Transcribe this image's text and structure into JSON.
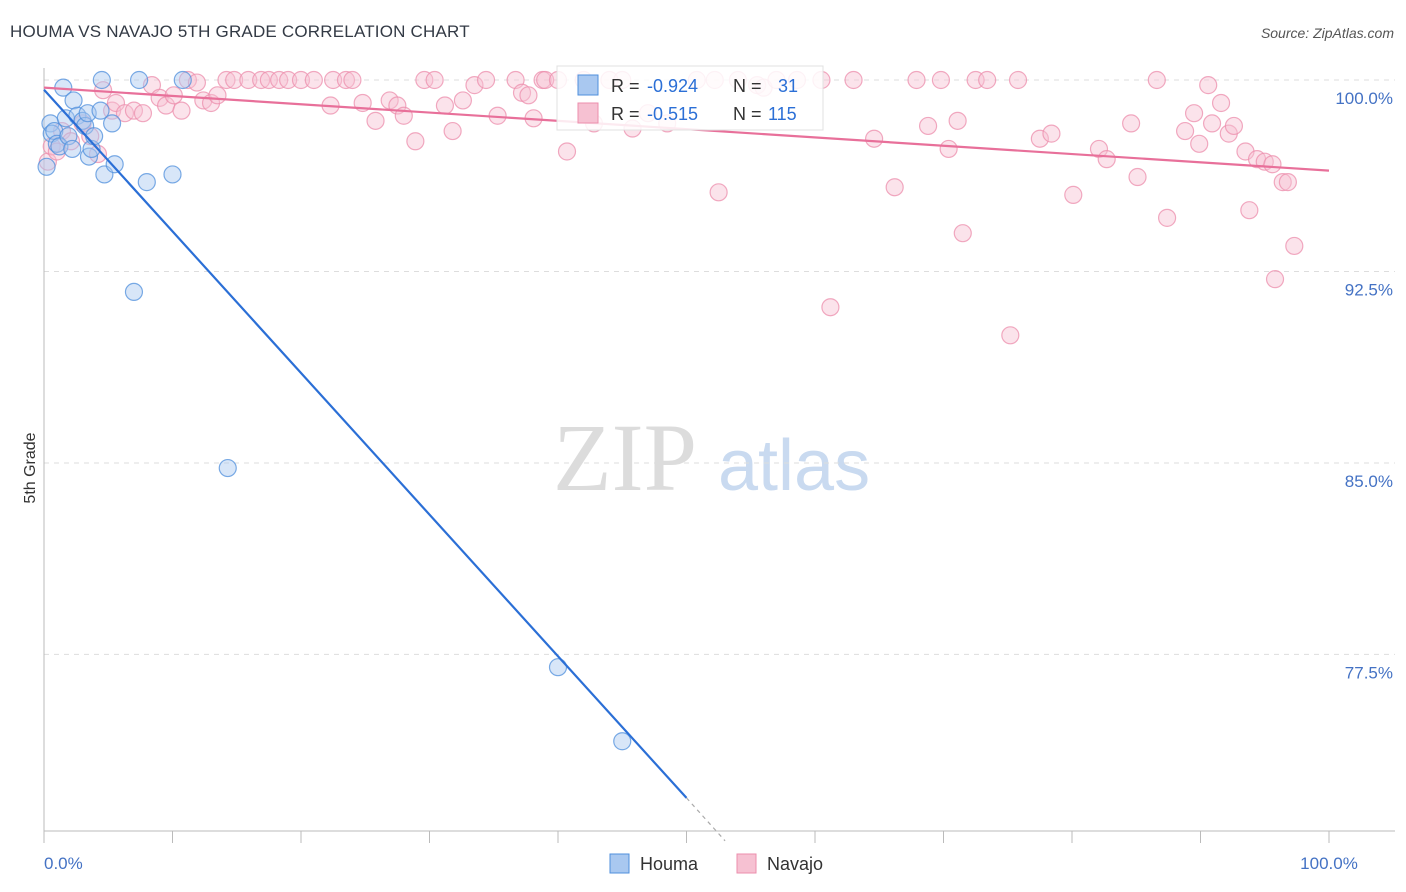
{
  "header": {
    "title": "HOUMA VS NAVAJO 5TH GRADE CORRELATION CHART",
    "source": "Source: ZipAtlas.com"
  },
  "watermark": {
    "zip": "ZIP",
    "atlas": "atlas"
  },
  "colors": {
    "houma": "#4f8fdc",
    "houma_fill": "#a9c8f0",
    "houma_line": "#2b6fd6",
    "navajo": "#ec8eac",
    "navajo_fill": "#f6c1d2",
    "navajo_line": "#e8709a",
    "tick_label": "#4472c4",
    "grid": "#dddddd"
  },
  "legend_stats": [
    {
      "r_label": "R =",
      "r_value": "-0.924",
      "n_label": "N =",
      "n_value": "31"
    },
    {
      "r_label": "R =",
      "r_value": "-0.515",
      "n_label": "N =",
      "n_value": "115"
    }
  ],
  "bottom_legend": [
    "Houma",
    "Navajo"
  ],
  "chart_data": {
    "type": "scatter",
    "title": "HOUMA VS NAVAJO 5TH GRADE CORRELATION CHART",
    "xlabel": "",
    "ylabel": "5th Grade",
    "xlim": [
      0,
      100
    ],
    "ylim": [
      71.0,
      100.5
    ],
    "x_tick_labels": [
      "0.0%",
      "100.0%"
    ],
    "y_ticks": [
      {
        "value": 100.0,
        "label": "100.0%"
      },
      {
        "value": 92.5,
        "label": "92.5%"
      },
      {
        "value": 85.0,
        "label": "85.0%"
      },
      {
        "value": 77.5,
        "label": "77.5%"
      }
    ],
    "grid": true,
    "series": [
      {
        "name": "Houma",
        "r": -0.924,
        "n": 31,
        "trend": {
          "x0": 0.0,
          "y0": 99.62,
          "x1": 50.0,
          "y1": 71.88,
          "dash_to_x": 53.0,
          "dash_to_y": 70.2
        },
        "points": [
          [
            0.2,
            96.6
          ],
          [
            0.5,
            98.3
          ],
          [
            0.6,
            97.9
          ],
          [
            0.8,
            98.0
          ],
          [
            1.0,
            97.5
          ],
          [
            1.2,
            97.4
          ],
          [
            1.5,
            99.7
          ],
          [
            1.7,
            98.5
          ],
          [
            1.9,
            97.8
          ],
          [
            2.2,
            97.3
          ],
          [
            2.3,
            99.2
          ],
          [
            2.6,
            98.6
          ],
          [
            3.0,
            98.4
          ],
          [
            3.2,
            98.2
          ],
          [
            3.4,
            98.7
          ],
          [
            3.5,
            97.0
          ],
          [
            3.7,
            97.3
          ],
          [
            3.9,
            97.8
          ],
          [
            4.4,
            98.8
          ],
          [
            4.5,
            100.0
          ],
          [
            4.7,
            96.3
          ],
          [
            5.3,
            98.3
          ],
          [
            5.5,
            96.7
          ],
          [
            7.0,
            91.7
          ],
          [
            7.4,
            100.0
          ],
          [
            8.0,
            96.0
          ],
          [
            10.0,
            96.3
          ],
          [
            10.8,
            100.0
          ],
          [
            14.3,
            84.8
          ],
          [
            40.0,
            77.0
          ],
          [
            45.0,
            74.1
          ]
        ]
      },
      {
        "name": "Navajo",
        "r": -0.515,
        "n": 115,
        "trend": {
          "x0": 0.0,
          "y0": 99.7,
          "x1": 100.0,
          "y1": 96.45
        },
        "points": [
          [
            0.3,
            96.8
          ],
          [
            0.6,
            97.4
          ],
          [
            1.0,
            97.2
          ],
          [
            1.4,
            98.0
          ],
          [
            2.1,
            97.6
          ],
          [
            3.0,
            98.3
          ],
          [
            3.6,
            97.8
          ],
          [
            4.2,
            97.1
          ],
          [
            4.6,
            99.6
          ],
          [
            5.3,
            98.8
          ],
          [
            5.6,
            99.1
          ],
          [
            6.3,
            98.7
          ],
          [
            7.0,
            98.8
          ],
          [
            7.7,
            98.7
          ],
          [
            8.4,
            99.8
          ],
          [
            9.0,
            99.3
          ],
          [
            9.5,
            99.0
          ],
          [
            10.1,
            99.4
          ],
          [
            10.7,
            98.8
          ],
          [
            11.2,
            100.0
          ],
          [
            11.9,
            99.9
          ],
          [
            12.4,
            99.2
          ],
          [
            13.0,
            99.1
          ],
          [
            13.5,
            99.4
          ],
          [
            14.2,
            100.0
          ],
          [
            14.8,
            100.0
          ],
          [
            15.9,
            100.0
          ],
          [
            16.9,
            100.0
          ],
          [
            17.5,
            100.0
          ],
          [
            18.3,
            100.0
          ],
          [
            19.0,
            100.0
          ],
          [
            20.0,
            100.0
          ],
          [
            21.0,
            100.0
          ],
          [
            22.3,
            99.0
          ],
          [
            22.5,
            100.0
          ],
          [
            23.5,
            100.0
          ],
          [
            24.0,
            100.0
          ],
          [
            24.8,
            99.1
          ],
          [
            25.8,
            98.4
          ],
          [
            26.9,
            99.2
          ],
          [
            27.5,
            99.0
          ],
          [
            28.0,
            98.6
          ],
          [
            28.9,
            97.6
          ],
          [
            29.6,
            100.0
          ],
          [
            30.4,
            100.0
          ],
          [
            31.2,
            99.0
          ],
          [
            31.8,
            98.0
          ],
          [
            32.6,
            99.2
          ],
          [
            33.5,
            99.8
          ],
          [
            34.4,
            100.0
          ],
          [
            35.3,
            98.6
          ],
          [
            36.7,
            100.0
          ],
          [
            37.2,
            99.5
          ],
          [
            37.7,
            99.4
          ],
          [
            38.1,
            98.5
          ],
          [
            38.8,
            100.0
          ],
          [
            39.0,
            100.0
          ],
          [
            40.0,
            100.0
          ],
          [
            40.7,
            97.2
          ],
          [
            42.0,
            100.0
          ],
          [
            42.8,
            98.3
          ],
          [
            44.0,
            100.0
          ],
          [
            45.0,
            100.0
          ],
          [
            45.8,
            98.1
          ],
          [
            47.0,
            98.7
          ],
          [
            48.5,
            98.3
          ],
          [
            50.8,
            100.0
          ],
          [
            52.2,
            100.0
          ],
          [
            52.5,
            95.6
          ],
          [
            54.0,
            100.0
          ],
          [
            55.5,
            99.8
          ],
          [
            56.0,
            99.7
          ],
          [
            57.0,
            100.0
          ],
          [
            58.6,
            100.0
          ],
          [
            60.5,
            100.0
          ],
          [
            61.2,
            91.1
          ],
          [
            63.0,
            100.0
          ],
          [
            64.6,
            97.7
          ],
          [
            66.2,
            95.8
          ],
          [
            67.9,
            100.0
          ],
          [
            68.8,
            98.2
          ],
          [
            69.8,
            100.0
          ],
          [
            70.4,
            97.3
          ],
          [
            71.1,
            98.4
          ],
          [
            71.5,
            94.0
          ],
          [
            72.5,
            100.0
          ],
          [
            73.4,
            100.0
          ],
          [
            75.2,
            90.0
          ],
          [
            75.8,
            100.0
          ],
          [
            77.5,
            97.7
          ],
          [
            78.4,
            97.9
          ],
          [
            80.1,
            95.5
          ],
          [
            82.1,
            97.3
          ],
          [
            82.7,
            96.9
          ],
          [
            84.6,
            98.3
          ],
          [
            85.1,
            96.2
          ],
          [
            86.6,
            100.0
          ],
          [
            87.4,
            94.6
          ],
          [
            88.8,
            98.0
          ],
          [
            89.5,
            98.7
          ],
          [
            89.9,
            97.5
          ],
          [
            90.6,
            99.8
          ],
          [
            90.9,
            98.3
          ],
          [
            91.6,
            99.1
          ],
          [
            92.2,
            97.9
          ],
          [
            92.6,
            98.2
          ],
          [
            93.5,
            97.2
          ],
          [
            93.8,
            94.9
          ],
          [
            94.4,
            96.9
          ],
          [
            95.0,
            96.8
          ],
          [
            95.6,
            96.7
          ],
          [
            95.8,
            92.2
          ],
          [
            96.4,
            96.0
          ],
          [
            96.8,
            96.0
          ],
          [
            97.3,
            93.5
          ]
        ]
      }
    ]
  }
}
